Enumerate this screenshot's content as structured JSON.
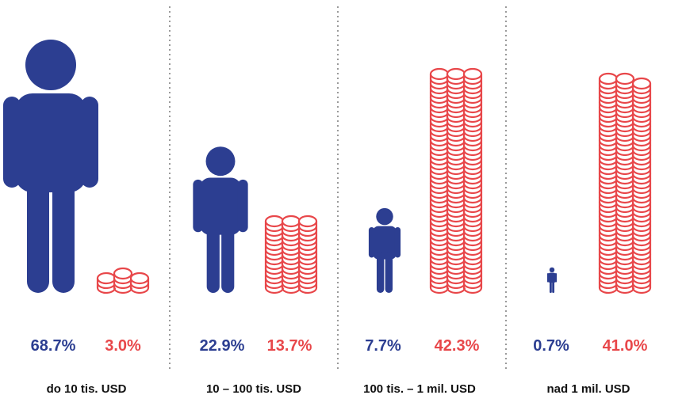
{
  "colors": {
    "people": "#2c3e91",
    "wealth": "#e8474a",
    "divider": "#9a9a9a"
  },
  "chart_data": {
    "type": "pictograph",
    "categories": [
      "do 10 tis. USD",
      "10 – 100 tis. USD",
      "100 tis. – 1 mil. USD",
      "nad 1 mil. USD"
    ],
    "series": [
      {
        "values": [
          68.7,
          22.9,
          7.7,
          0.7
        ],
        "labels": [
          "68.7%",
          "22.9%",
          "7.7%",
          "0.7%"
        ],
        "icon": "person-icon"
      },
      {
        "values": [
          3.0,
          13.7,
          42.3,
          41.0
        ],
        "labels": [
          "3.0%",
          "13.7%",
          "42.3%",
          "41.0%"
        ],
        "icon": "coin-stack-icon"
      }
    ]
  }
}
